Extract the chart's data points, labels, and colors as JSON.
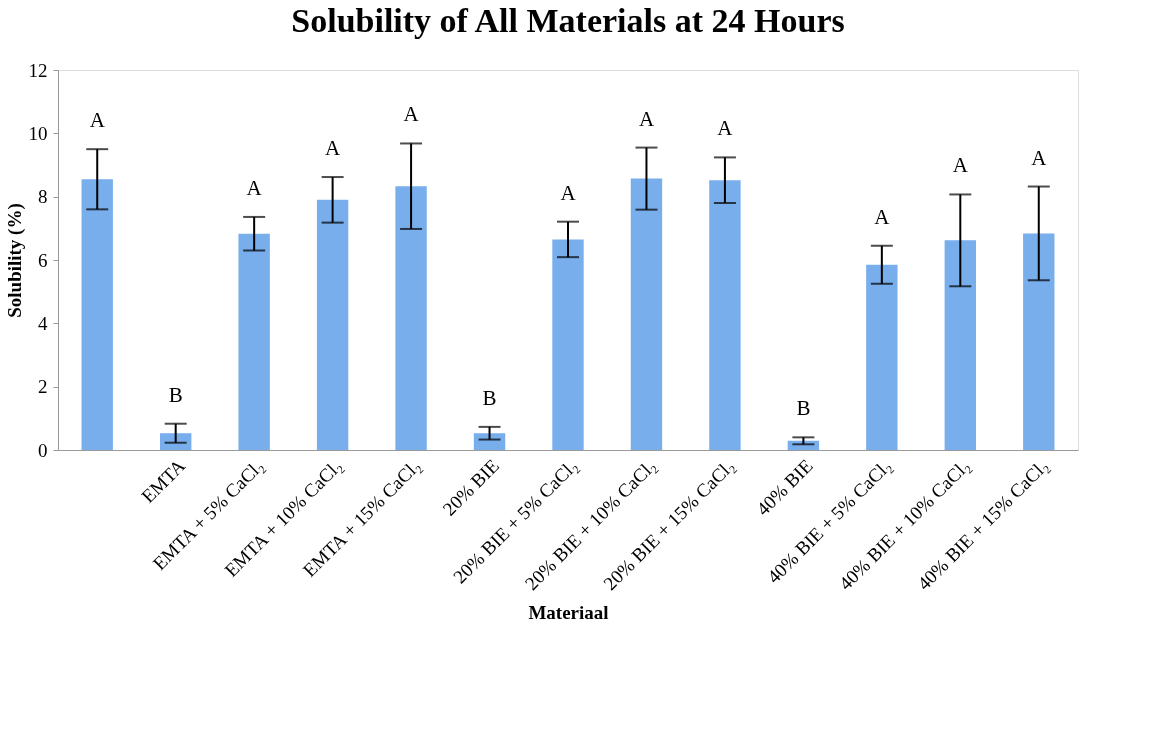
{
  "chart_data": {
    "type": "bar",
    "title": "Solubility of All Materials at 24 Hours",
    "xlabel": "Materiaal",
    "ylabel": "Solubility (%)",
    "categories": [
      null,
      "EMTA",
      "EMTA + 5% CaCl₂",
      "EMTA + 10% CaCl₂",
      "EMTA + 15% CaCl₂",
      "20% BIE",
      "20% BIE + 5% CaCl₂",
      "20% BIE + 10% CaCl₂",
      "20% BIE + 15% CaCl₂",
      "40% BIE",
      "40% BIE + 5% CaCl₂",
      "40% BIE + 10% CaCl₂",
      "40% BIE + 15% CaCl₂"
    ],
    "values": [
      8.55,
      0.53,
      6.83,
      7.9,
      8.33,
      0.53,
      6.65,
      8.57,
      8.52,
      0.29,
      5.85,
      6.62,
      6.84
    ],
    "errors": [
      0.95,
      0.3,
      0.53,
      0.72,
      1.35,
      0.2,
      0.56,
      0.98,
      0.72,
      0.11,
      0.6,
      1.45,
      1.48
    ],
    "color": "#78aeec",
    "ylim": [
      0,
      12
    ],
    "yticks": [
      0,
      2,
      4,
      6,
      8,
      10,
      12
    ],
    "grid": false,
    "annotations": [
      "A",
      "B",
      "A",
      "A",
      "A",
      "B",
      "A",
      "A",
      "A",
      "B",
      "A",
      "A",
      "A"
    ]
  }
}
